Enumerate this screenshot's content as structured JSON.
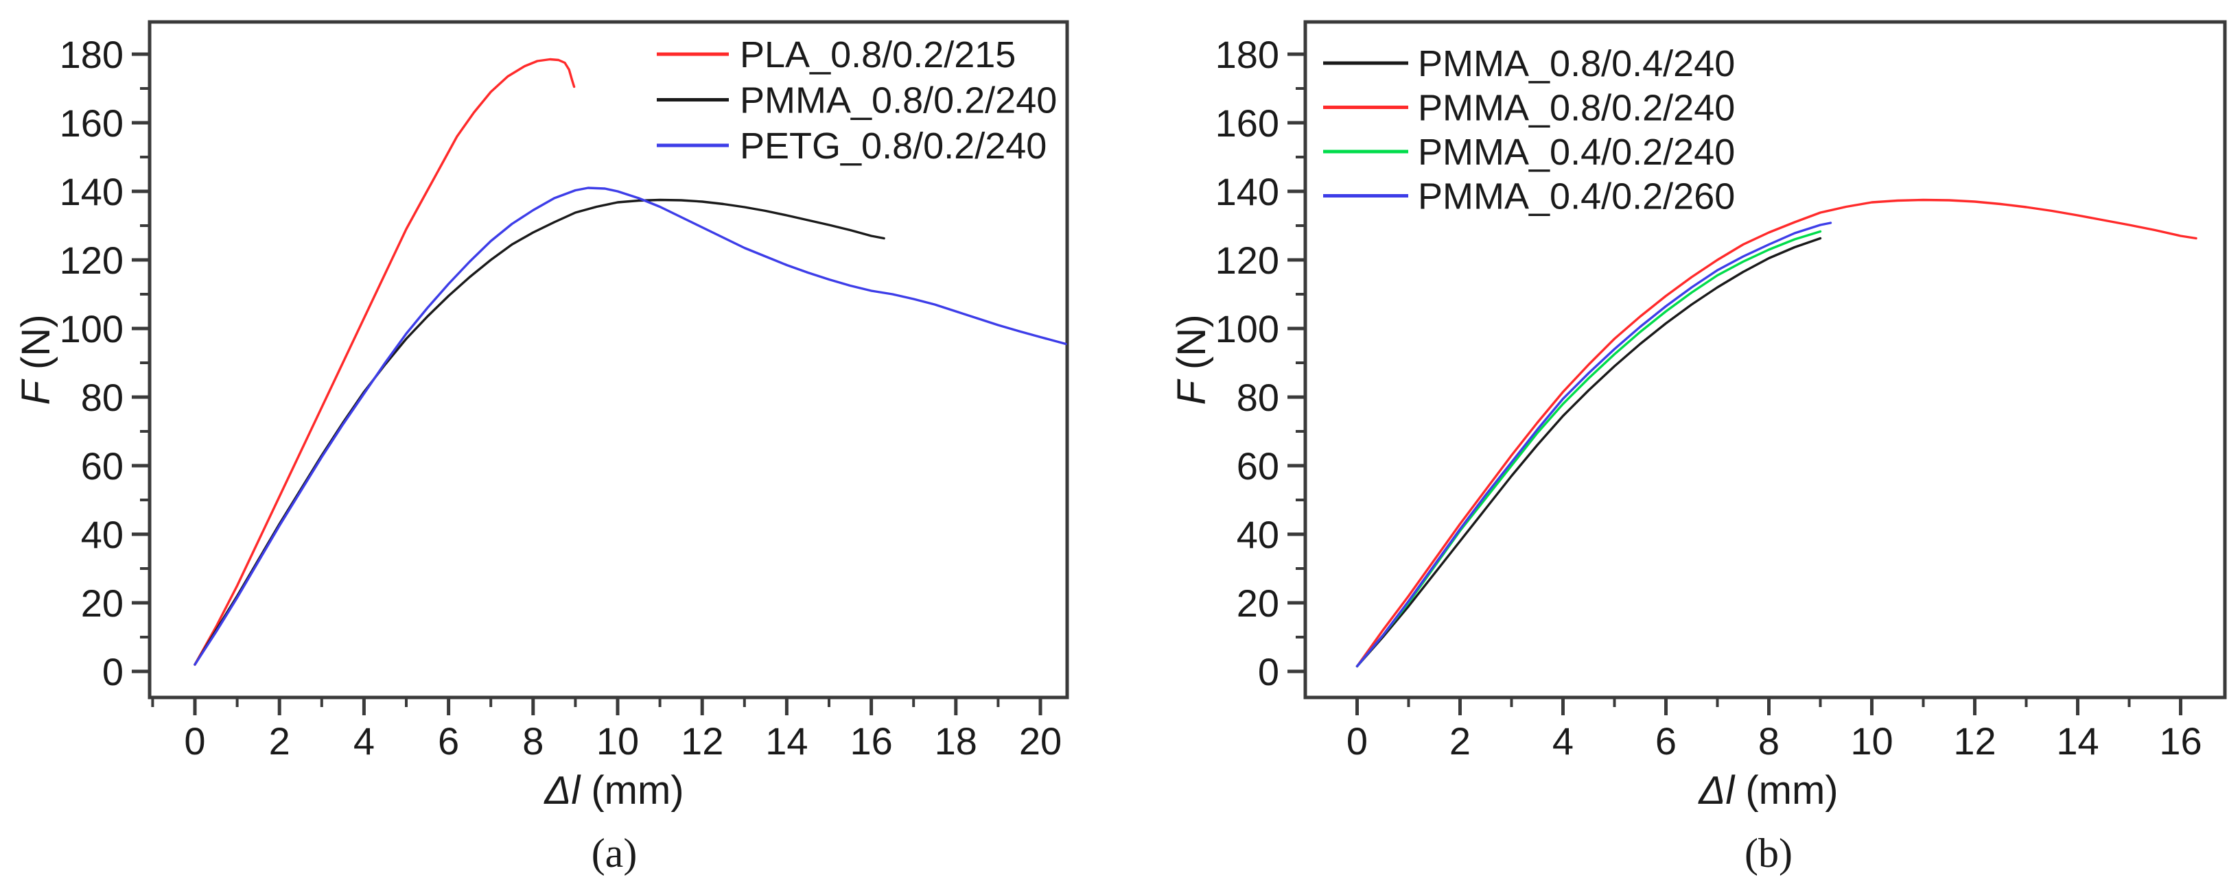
{
  "figure": {
    "background": "#FFFFFF",
    "axis_color": "#3A3A3A",
    "text_color": "#1A1A1A"
  },
  "chart_data": [
    {
      "type": "line",
      "caption": "(a)",
      "xlabel_italic": "Δl",
      "xlabel_rest": " (mm)",
      "ylabel_italic": "F",
      "ylabel_rest": " (N)",
      "xlim": [
        -1.07,
        20.63
      ],
      "ylim": [
        -7.6,
        189.4
      ],
      "x_major_ticks": [
        0,
        2,
        4,
        6,
        8,
        10,
        12,
        14,
        16,
        18,
        20
      ],
      "x_minor_ticks": [
        -1,
        1,
        3,
        5,
        7,
        9,
        11,
        13,
        15,
        17,
        19
      ],
      "y_major_ticks": [
        0,
        20,
        40,
        60,
        80,
        100,
        120,
        140,
        160,
        180
      ],
      "y_minor_ticks": [
        10,
        30,
        50,
        70,
        90,
        110,
        130,
        150,
        170
      ],
      "grid": false,
      "legend_position": "top-right-inside",
      "series": [
        {
          "name": "PLA_0.8/0.2/215",
          "color": "#FF2A2A",
          "points": [
            [
              0,
              2
            ],
            [
              0.5,
              13
            ],
            [
              1,
              25
            ],
            [
              1.5,
              38
            ],
            [
              2,
              51
            ],
            [
              2.5,
              64
            ],
            [
              3,
              77
            ],
            [
              3.5,
              90
            ],
            [
              4,
              103
            ],
            [
              4.5,
              116
            ],
            [
              5,
              129
            ],
            [
              5.4,
              138
            ],
            [
              5.8,
              147
            ],
            [
              6.2,
              156
            ],
            [
              6.6,
              163
            ],
            [
              7,
              169
            ],
            [
              7.4,
              173.5
            ],
            [
              7.8,
              176.5
            ],
            [
              8.1,
              178
            ],
            [
              8.4,
              178.5
            ],
            [
              8.6,
              178.3
            ],
            [
              8.75,
              177.5
            ],
            [
              8.85,
              175.5
            ],
            [
              8.92,
              172.5
            ],
            [
              8.97,
              170.5
            ]
          ]
        },
        {
          "name": "PMMA_0.8/0.2/240",
          "color": "#1A1A1A",
          "points": [
            [
              0,
              2
            ],
            [
              0.5,
              12
            ],
            [
              1,
              22
            ],
            [
              1.5,
              32.5
            ],
            [
              2,
              43
            ],
            [
              2.5,
              53
            ],
            [
              3,
              63
            ],
            [
              3.5,
              72.5
            ],
            [
              4,
              81.5
            ],
            [
              4.5,
              89.5
            ],
            [
              5,
              97
            ],
            [
              5.5,
              103.5
            ],
            [
              6,
              109.5
            ],
            [
              6.5,
              115
            ],
            [
              7,
              120
            ],
            [
              7.5,
              124.5
            ],
            [
              8,
              128
            ],
            [
              8.5,
              131
            ],
            [
              9,
              133.8
            ],
            [
              9.5,
              135.5
            ],
            [
              10,
              136.8
            ],
            [
              10.5,
              137.3
            ],
            [
              11,
              137.5
            ],
            [
              11.5,
              137.4
            ],
            [
              12,
              137
            ],
            [
              12.5,
              136.3
            ],
            [
              13,
              135.4
            ],
            [
              13.5,
              134.3
            ],
            [
              14,
              133
            ],
            [
              14.5,
              131.6
            ],
            [
              15,
              130.2
            ],
            [
              15.5,
              128.7
            ],
            [
              16,
              127
            ],
            [
              16.3,
              126.3
            ]
          ]
        },
        {
          "name": "PETG_0.8/0.2/240",
          "color": "#3D3DE8",
          "points": [
            [
              0,
              2
            ],
            [
              0.5,
              11.5
            ],
            [
              1,
              21.5
            ],
            [
              1.5,
              32
            ],
            [
              2,
              42.5
            ],
            [
              2.5,
              52.5
            ],
            [
              3,
              62.5
            ],
            [
              3.5,
              72
            ],
            [
              4,
              81
            ],
            [
              4.5,
              90
            ],
            [
              5,
              98.5
            ],
            [
              5.5,
              106
            ],
            [
              6,
              113
            ],
            [
              6.5,
              119.5
            ],
            [
              7,
              125.5
            ],
            [
              7.5,
              130.5
            ],
            [
              8,
              134.5
            ],
            [
              8.5,
              138
            ],
            [
              9,
              140.3
            ],
            [
              9.3,
              141
            ],
            [
              9.7,
              140.8
            ],
            [
              10,
              140
            ],
            [
              10.5,
              138
            ],
            [
              11,
              135.5
            ],
            [
              11.5,
              132.5
            ],
            [
              12,
              129.5
            ],
            [
              12.5,
              126.5
            ],
            [
              13,
              123.5
            ],
            [
              13.5,
              121
            ],
            [
              14,
              118.5
            ],
            [
              14.5,
              116.3
            ],
            [
              15,
              114.3
            ],
            [
              15.5,
              112.5
            ],
            [
              16,
              111
            ],
            [
              16.5,
              110
            ],
            [
              17,
              108.6
            ],
            [
              17.5,
              107
            ],
            [
              18,
              105
            ],
            [
              18.5,
              103
            ],
            [
              19,
              101
            ],
            [
              19.5,
              99.2
            ],
            [
              20,
              97.5
            ],
            [
              20.6,
              95.5
            ]
          ]
        }
      ]
    },
    {
      "type": "line",
      "caption": "(b)",
      "xlabel_italic": "Δl",
      "xlabel_rest": " (mm)",
      "ylabel_italic": "F",
      "ylabel_rest": " (N)",
      "xlim": [
        -1.0,
        16.87
      ],
      "ylim": [
        -7.6,
        189.4
      ],
      "x_major_ticks": [
        0,
        2,
        4,
        6,
        8,
        10,
        12,
        14,
        16
      ],
      "x_minor_ticks": [
        1,
        3,
        5,
        7,
        9,
        11,
        13,
        15
      ],
      "y_major_ticks": [
        0,
        20,
        40,
        60,
        80,
        100,
        120,
        140,
        160,
        180
      ],
      "y_minor_ticks": [
        10,
        30,
        50,
        70,
        90,
        110,
        130,
        150,
        170
      ],
      "grid": false,
      "legend_position": "top-left-inside",
      "series": [
        {
          "name": "PMMA_0.8/0.4/240",
          "color": "#1A1A1A",
          "points": [
            [
              0,
              1.5
            ],
            [
              0.5,
              10
            ],
            [
              1,
              19
            ],
            [
              1.5,
              28.5
            ],
            [
              2,
              38
            ],
            [
              2.5,
              47.5
            ],
            [
              3,
              57
            ],
            [
              3.5,
              66
            ],
            [
              4,
              74.5
            ],
            [
              4.5,
              82
            ],
            [
              5,
              89
            ],
            [
              5.5,
              95.5
            ],
            [
              6,
              101.5
            ],
            [
              6.5,
              107
            ],
            [
              7,
              112
            ],
            [
              7.5,
              116.5
            ],
            [
              8,
              120.5
            ],
            [
              8.5,
              123.7
            ],
            [
              9,
              126.3
            ]
          ]
        },
        {
          "name": "PMMA_0.8/0.2/240",
          "color": "#FF2A2A",
          "points": [
            [
              0,
              1.5
            ],
            [
              0.5,
              12
            ],
            [
              1,
              22
            ],
            [
              1.5,
              32.5
            ],
            [
              2,
              43
            ],
            [
              2.5,
              53
            ],
            [
              3,
              63
            ],
            [
              3.5,
              72.5
            ],
            [
              4,
              81.5
            ],
            [
              4.5,
              89.5
            ],
            [
              5,
              97
            ],
            [
              5.5,
              103.5
            ],
            [
              6,
              109.5
            ],
            [
              6.5,
              115
            ],
            [
              7,
              120
            ],
            [
              7.5,
              124.5
            ],
            [
              8,
              128
            ],
            [
              8.5,
              131
            ],
            [
              9,
              133.8
            ],
            [
              9.5,
              135.5
            ],
            [
              10,
              136.8
            ],
            [
              10.5,
              137.3
            ],
            [
              11,
              137.5
            ],
            [
              11.5,
              137.4
            ],
            [
              12,
              137
            ],
            [
              12.5,
              136.3
            ],
            [
              13,
              135.4
            ],
            [
              13.5,
              134.3
            ],
            [
              14,
              133
            ],
            [
              14.5,
              131.6
            ],
            [
              15,
              130.2
            ],
            [
              15.5,
              128.7
            ],
            [
              16,
              127
            ],
            [
              16.3,
              126.3
            ]
          ]
        },
        {
          "name": "PMMA_0.4/0.2/240",
          "color": "#00DC4B",
          "points": [
            [
              0,
              1.5
            ],
            [
              0.5,
              10.5
            ],
            [
              1,
              20
            ],
            [
              1.5,
              30.5
            ],
            [
              2,
              41
            ],
            [
              2.5,
              50.5
            ],
            [
              3,
              60
            ],
            [
              3.5,
              69.5
            ],
            [
              4,
              78
            ],
            [
              4.5,
              85.5
            ],
            [
              5,
              92.5
            ],
            [
              5.5,
              99
            ],
            [
              6,
              105
            ],
            [
              6.5,
              110.5
            ],
            [
              7,
              115.5
            ],
            [
              7.5,
              119.5
            ],
            [
              8,
              123
            ],
            [
              8.5,
              126
            ],
            [
              9,
              128.3
            ]
          ]
        },
        {
          "name": "PMMA_0.4/0.2/260",
          "color": "#3D3DE8",
          "points": [
            [
              0,
              1.5
            ],
            [
              0.5,
              10.5
            ],
            [
              1,
              20.5
            ],
            [
              1.5,
              31
            ],
            [
              2,
              41.5
            ],
            [
              2.5,
              51.5
            ],
            [
              3,
              61
            ],
            [
              3.5,
              70.5
            ],
            [
              4,
              79.5
            ],
            [
              4.5,
              87
            ],
            [
              5,
              94
            ],
            [
              5.5,
              100.5
            ],
            [
              6,
              106.5
            ],
            [
              6.5,
              112
            ],
            [
              7,
              117
            ],
            [
              7.5,
              121
            ],
            [
              8,
              124.5
            ],
            [
              8.5,
              127.8
            ],
            [
              9,
              130.2
            ],
            [
              9.2,
              130.8
            ]
          ]
        }
      ]
    }
  ]
}
